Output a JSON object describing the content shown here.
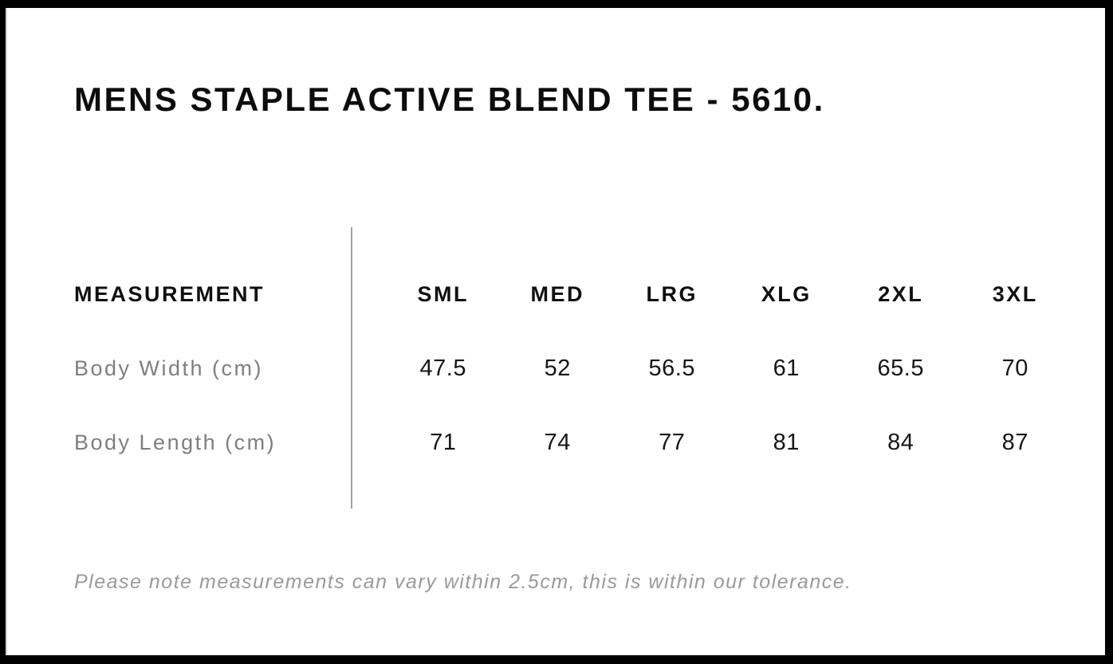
{
  "page": {
    "title": "MENS STAPLE ACTIVE BLEND TEE - 5610.",
    "note": "Please note measurements can vary within 2.5cm, this is within our tolerance."
  },
  "size_chart": {
    "measurement_header": "MEASUREMENT",
    "size_headers": [
      "SML",
      "MED",
      "LRG",
      "XLG",
      "2XL",
      "3XL"
    ],
    "rows": [
      {
        "label": "Body Width (cm)",
        "values": [
          "47.5",
          "52",
          "56.5",
          "61",
          "65.5",
          "70"
        ]
      },
      {
        "label": "Body Length (cm)",
        "values": [
          "71",
          "74",
          "77",
          "81",
          "84",
          "87"
        ]
      }
    ]
  },
  "colors": {
    "frame": "#000000",
    "background": "#ffffff",
    "text_primary": "#0d0d0d",
    "text_values": "#161616",
    "text_muted": "#7f7f7f",
    "note_text": "#9a9a9a",
    "divider": "#a3a3a3"
  }
}
